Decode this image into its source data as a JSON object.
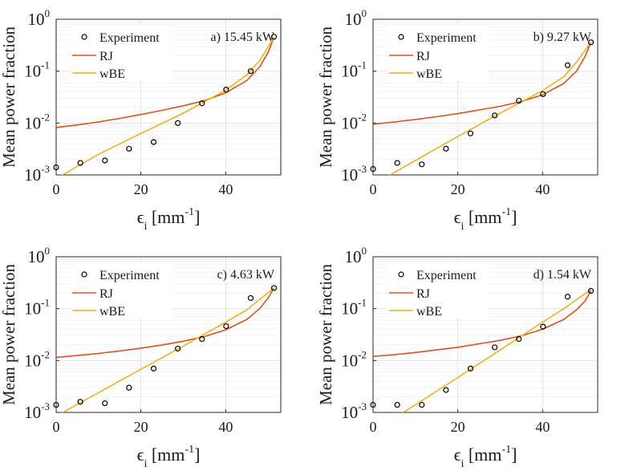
{
  "colors": {
    "rj": "#d95319",
    "wbe": "#edb120",
    "experiment": "#000000",
    "grid": "#e6e6e6"
  },
  "chart_data": [
    {
      "type": "line",
      "annotation": "a) 15.45 kW",
      "xlabel": "ϵ",
      "xlabel_sub": "i",
      "xlabel_unit": "[mm",
      "xlabel_unit_sup": "-1",
      "xlabel_unit_close": "]",
      "ylabel": "Mean power fraction",
      "yscale": "log",
      "xlim": [
        0,
        53
      ],
      "ylim": [
        0.001,
        1
      ],
      "xticks": [
        0,
        20,
        40
      ],
      "yticks": [
        0.001,
        0.01,
        0.1,
        1
      ],
      "ytick_labels": [
        {
          "base": "10",
          "exp": "-3"
        },
        {
          "base": "10",
          "exp": "-2"
        },
        {
          "base": "10",
          "exp": "-1"
        },
        {
          "base": "10",
          "exp": "0"
        }
      ],
      "grid": true,
      "legend": "top-left",
      "series": [
        {
          "name": "Experiment",
          "kind": "scatter",
          "x": [
            0,
            5.7,
            11.5,
            17.2,
            23,
            28.7,
            34.4,
            40.1,
            45.9,
            51.4
          ],
          "y": [
            0.0014,
            0.0017,
            0.0019,
            0.0032,
            0.0043,
            0.01,
            0.024,
            0.044,
            0.1,
            0.46
          ]
        },
        {
          "name": "RJ",
          "kind": "line",
          "x": [
            0,
            5,
            10,
            15,
            20,
            25,
            30,
            35,
            40,
            45,
            48,
            50,
            51.4
          ],
          "y": [
            0.0082,
            0.0092,
            0.0105,
            0.0123,
            0.0146,
            0.0176,
            0.0215,
            0.027,
            0.038,
            0.066,
            0.12,
            0.23,
            0.45
          ]
        },
        {
          "name": "wBE",
          "kind": "line",
          "x": [
            0,
            10,
            20,
            30,
            40,
            45,
            48,
            51.4
          ],
          "y": [
            0.00085,
            0.0025,
            0.0063,
            0.0155,
            0.043,
            0.085,
            0.16,
            0.45
          ]
        }
      ]
    },
    {
      "type": "line",
      "annotation": "b) 9.27 kW",
      "xlabel": "ϵ",
      "xlabel_sub": "i",
      "xlabel_unit": "[mm",
      "xlabel_unit_sup": "-1",
      "xlabel_unit_close": "]",
      "ylabel": "Mean power fraction",
      "yscale": "log",
      "xlim": [
        0,
        53
      ],
      "ylim": [
        0.001,
        1
      ],
      "xticks": [
        0,
        20,
        40
      ],
      "yticks": [
        0.001,
        0.01,
        0.1,
        1
      ],
      "ytick_labels": [
        {
          "base": "10",
          "exp": "-3"
        },
        {
          "base": "10",
          "exp": "-2"
        },
        {
          "base": "10",
          "exp": "-1"
        },
        {
          "base": "10",
          "exp": "0"
        }
      ],
      "grid": true,
      "legend": "top-left",
      "series": [
        {
          "name": "Experiment",
          "kind": "scatter",
          "x": [
            0,
            5.7,
            11.5,
            17.2,
            23,
            28.7,
            34.4,
            40.1,
            45.9,
            51.4
          ],
          "y": [
            0.0013,
            0.0017,
            0.0016,
            0.0032,
            0.0063,
            0.014,
            0.027,
            0.036,
            0.13,
            0.36
          ]
        },
        {
          "name": "RJ",
          "kind": "line",
          "x": [
            0,
            5,
            10,
            15,
            20,
            25,
            30,
            35,
            40,
            45,
            48,
            50,
            51.4
          ],
          "y": [
            0.0095,
            0.0105,
            0.0117,
            0.0132,
            0.0152,
            0.0178,
            0.021,
            0.026,
            0.035,
            0.058,
            0.1,
            0.19,
            0.36
          ]
        },
        {
          "name": "wBE",
          "kind": "line",
          "x": [
            0,
            10,
            20,
            30,
            40,
            45,
            48,
            51.4
          ],
          "y": [
            0.00065,
            0.0019,
            0.0055,
            0.0155,
            0.042,
            0.078,
            0.15,
            0.36
          ]
        }
      ]
    },
    {
      "type": "line",
      "annotation": "c) 4.63 kW",
      "xlabel": "ϵ",
      "xlabel_sub": "i",
      "xlabel_unit": "[mm",
      "xlabel_unit_sup": "-1",
      "xlabel_unit_close": "]",
      "ylabel": "Mean power fraction",
      "yscale": "log",
      "xlim": [
        0,
        53
      ],
      "ylim": [
        0.001,
        1
      ],
      "xticks": [
        0,
        20,
        40
      ],
      "yticks": [
        0.001,
        0.01,
        0.1,
        1
      ],
      "ytick_labels": [
        {
          "base": "10",
          "exp": "-3"
        },
        {
          "base": "10",
          "exp": "-2"
        },
        {
          "base": "10",
          "exp": "-1"
        },
        {
          "base": "10",
          "exp": "0"
        }
      ],
      "grid": true,
      "legend": "top-left",
      "series": [
        {
          "name": "Experiment",
          "kind": "scatter",
          "x": [
            0,
            5.7,
            11.5,
            17.2,
            23,
            28.7,
            34.4,
            40.1,
            45.9,
            51.4
          ],
          "y": [
            0.0014,
            0.0016,
            0.0015,
            0.003,
            0.007,
            0.017,
            0.026,
            0.046,
            0.16,
            0.25
          ]
        },
        {
          "name": "RJ",
          "kind": "line",
          "x": [
            0,
            5,
            10,
            15,
            20,
            25,
            30,
            35,
            40,
            45,
            48,
            50,
            51.4
          ],
          "y": [
            0.0115,
            0.0125,
            0.0137,
            0.0153,
            0.0173,
            0.02,
            0.0235,
            0.029,
            0.039,
            0.062,
            0.1,
            0.16,
            0.25
          ]
        },
        {
          "name": "wBE",
          "kind": "line",
          "x": [
            0,
            10,
            20,
            30,
            40,
            45,
            48,
            51.4
          ],
          "y": [
            0.00085,
            0.0024,
            0.0068,
            0.019,
            0.055,
            0.095,
            0.15,
            0.25
          ]
        }
      ]
    },
    {
      "type": "line",
      "annotation": "d) 1.54 kW",
      "xlabel": "ϵ",
      "xlabel_sub": "i",
      "xlabel_unit": "[mm",
      "xlabel_unit_sup": "-1",
      "xlabel_unit_close": "]",
      "ylabel": "Mean power fraction",
      "yscale": "log",
      "xlim": [
        0,
        53
      ],
      "ylim": [
        0.001,
        1
      ],
      "xticks": [
        0,
        20,
        40
      ],
      "yticks": [
        0.001,
        0.01,
        0.1,
        1
      ],
      "ytick_labels": [
        {
          "base": "10",
          "exp": "-3"
        },
        {
          "base": "10",
          "exp": "-2"
        },
        {
          "base": "10",
          "exp": "-1"
        },
        {
          "base": "10",
          "exp": "0"
        }
      ],
      "grid": true,
      "legend": "top-left",
      "series": [
        {
          "name": "Experiment",
          "kind": "scatter",
          "x": [
            0,
            5.7,
            11.5,
            17.2,
            23,
            28.7,
            34.4,
            40.1,
            45.9,
            51.4
          ],
          "y": [
            0.0014,
            0.0014,
            0.0014,
            0.0027,
            0.007,
            0.018,
            0.026,
            0.045,
            0.17,
            0.22
          ]
        },
        {
          "name": "RJ",
          "kind": "line",
          "x": [
            0,
            5,
            10,
            15,
            20,
            25,
            30,
            35,
            40,
            45,
            48,
            50,
            51.4
          ],
          "y": [
            0.012,
            0.013,
            0.0143,
            0.016,
            0.018,
            0.021,
            0.0245,
            0.03,
            0.04,
            0.062,
            0.095,
            0.14,
            0.22
          ]
        },
        {
          "name": "wBE",
          "kind": "line",
          "x": [
            0,
            10,
            20,
            30,
            40,
            45,
            48,
            51.4
          ],
          "y": [
            0.00045,
            0.0014,
            0.0047,
            0.016,
            0.055,
            0.1,
            0.15,
            0.23
          ]
        }
      ]
    }
  ]
}
